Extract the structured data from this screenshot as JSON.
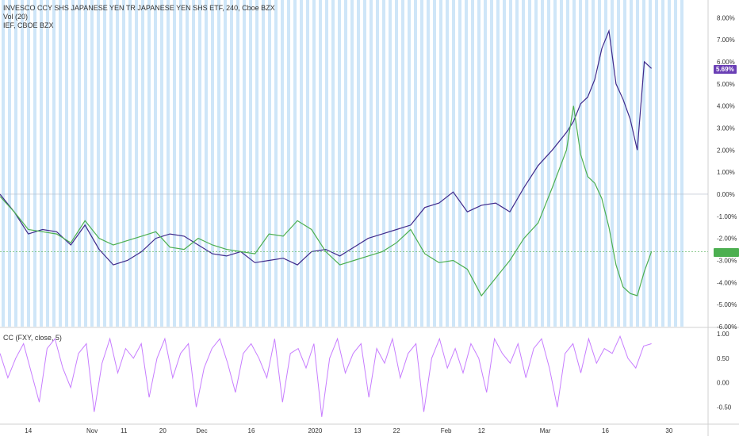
{
  "legend": {
    "title": "INVESCO CCY SHS JAPANESE YEN TR JAPANESE YEN SHS ETF, 240, Cboe BZX",
    "vol": "Vol (20)",
    "compare": "IEF, CBOE BZX",
    "indicator": "CC (FXY, close, 5)"
  },
  "price_badge": {
    "label": "5.69%",
    "color": "#6a3fb5"
  },
  "compare_badge": {
    "label": "",
    "color": "#4caf50"
  },
  "colors": {
    "main_line": "#3f2a8c",
    "compare_line": "#4caf50",
    "indicator_line": "#c77dff",
    "volume_stripe": "#cfe6f8"
  },
  "chart_data": [
    {
      "type": "line",
      "ylabel": "",
      "ylim": [
        -6,
        8.8
      ],
      "y_ticks": [
        "8.00%",
        "7.00%",
        "6.00%",
        "5.00%",
        "4.00%",
        "3.00%",
        "2.00%",
        "1.00%",
        "0.00%",
        "-1.00%",
        "-2.00%",
        "-3.00%",
        "-4.00%",
        "-5.00%",
        "-6.00%"
      ],
      "y_tick_values": [
        8,
        7,
        6,
        5,
        4,
        3,
        2,
        1,
        0,
        -1,
        -2,
        -3,
        -4,
        -5,
        -6
      ],
      "x_ticks": [
        "14",
        "Nov",
        "11",
        "20",
        "Dec",
        "16",
        "2020",
        "13",
        "22",
        "Feb",
        "12",
        "Mar",
        "16",
        "30"
      ],
      "x_tick_positions": [
        0.04,
        0.13,
        0.175,
        0.23,
        0.285,
        0.355,
        0.445,
        0.505,
        0.56,
        0.63,
        0.68,
        0.77,
        0.855,
        0.945
      ],
      "series": [
        {
          "name": "FXY",
          "x": [
            0,
            0.02,
            0.04,
            0.06,
            0.08,
            0.1,
            0.12,
            0.14,
            0.16,
            0.18,
            0.2,
            0.22,
            0.24,
            0.26,
            0.28,
            0.3,
            0.32,
            0.34,
            0.36,
            0.38,
            0.4,
            0.42,
            0.44,
            0.46,
            0.48,
            0.5,
            0.52,
            0.54,
            0.56,
            0.58,
            0.6,
            0.62,
            0.64,
            0.66,
            0.68,
            0.7,
            0.72,
            0.74,
            0.76,
            0.78,
            0.8,
            0.81,
            0.82,
            0.83,
            0.84,
            0.85,
            0.86,
            0.87,
            0.88,
            0.89,
            0.9,
            0.91,
            0.92
          ],
          "values": [
            0,
            -0.8,
            -1.8,
            -1.6,
            -1.7,
            -2.3,
            -1.4,
            -2.5,
            -3.2,
            -3.0,
            -2.6,
            -2.0,
            -1.8,
            -1.9,
            -2.3,
            -2.7,
            -2.8,
            -2.6,
            -3.1,
            -3.0,
            -2.9,
            -3.2,
            -2.6,
            -2.5,
            -2.8,
            -2.4,
            -2.0,
            -1.8,
            -1.6,
            -1.4,
            -0.6,
            -0.4,
            0.1,
            -0.8,
            -0.5,
            -0.4,
            -0.8,
            0.3,
            1.3,
            2.0,
            2.8,
            3.3,
            4.1,
            4.4,
            5.2,
            6.6,
            7.4,
            5.0,
            4.3,
            3.4,
            2.0,
            6.0,
            5.7
          ]
        },
        {
          "name": "IEF",
          "x": [
            0,
            0.02,
            0.04,
            0.06,
            0.08,
            0.1,
            0.12,
            0.14,
            0.16,
            0.18,
            0.2,
            0.22,
            0.24,
            0.26,
            0.28,
            0.3,
            0.32,
            0.34,
            0.36,
            0.38,
            0.4,
            0.42,
            0.44,
            0.46,
            0.48,
            0.5,
            0.52,
            0.54,
            0.56,
            0.58,
            0.6,
            0.62,
            0.64,
            0.66,
            0.68,
            0.7,
            0.72,
            0.74,
            0.76,
            0.78,
            0.8,
            0.81,
            0.82,
            0.83,
            0.84,
            0.85,
            0.86,
            0.87,
            0.88,
            0.89,
            0.9,
            0.91,
            0.92
          ],
          "values": [
            -0.1,
            -0.8,
            -1.6,
            -1.7,
            -1.8,
            -2.2,
            -1.2,
            -2.0,
            -2.3,
            -2.1,
            -1.9,
            -1.7,
            -2.4,
            -2.5,
            -2.0,
            -2.3,
            -2.5,
            -2.6,
            -2.7,
            -1.8,
            -1.9,
            -1.2,
            -1.6,
            -2.6,
            -3.2,
            -3.0,
            -2.8,
            -2.6,
            -2.2,
            -1.6,
            -2.7,
            -3.1,
            -3.0,
            -3.4,
            -4.6,
            -3.8,
            -3.0,
            -2.0,
            -1.3,
            0.3,
            2.0,
            4.0,
            1.8,
            0.8,
            0.5,
            -0.2,
            -1.5,
            -3.2,
            -4.2,
            -4.5,
            -4.6,
            -3.5,
            -2.6
          ]
        }
      ]
    },
    {
      "type": "line",
      "title": "CC (FXY, close, 5)",
      "ylim": [
        -0.85,
        1.1
      ],
      "y_ticks": [
        "1.00",
        "0.50",
        "0.00",
        "-0.50"
      ],
      "y_tick_values": [
        1,
        0.5,
        0,
        -0.5
      ],
      "series": [
        {
          "name": "CC",
          "values": [
            0.6,
            0.1,
            0.5,
            0.8,
            0.2,
            -0.4,
            0.7,
            0.9,
            0.3,
            -0.1,
            0.6,
            0.8,
            -0.6,
            0.4,
            0.9,
            0.2,
            0.7,
            0.5,
            0.8,
            -0.3,
            0.5,
            0.9,
            0.1,
            0.6,
            0.8,
            -0.5,
            0.3,
            0.7,
            0.9,
            0.4,
            -0.2,
            0.6,
            0.8,
            0.5,
            0.1,
            0.9,
            -0.4,
            0.6,
            0.7,
            0.3,
            0.8,
            -0.7,
            0.5,
            0.9,
            0.2,
            0.6,
            0.8,
            -0.3,
            0.7,
            0.4,
            0.9,
            0.1,
            0.6,
            0.8,
            -0.6,
            0.5,
            0.9,
            0.3,
            0.7,
            0.2,
            0.8,
            0.5,
            -0.2,
            0.9,
            0.6,
            0.4,
            0.8,
            0.1,
            0.7,
            0.9,
            0.3,
            -0.5,
            0.6,
            0.8,
            0.2,
            0.9,
            0.4,
            0.7,
            0.6,
            0.95,
            0.5,
            0.3,
            0.75,
            0.8
          ]
        }
      ]
    }
  ]
}
